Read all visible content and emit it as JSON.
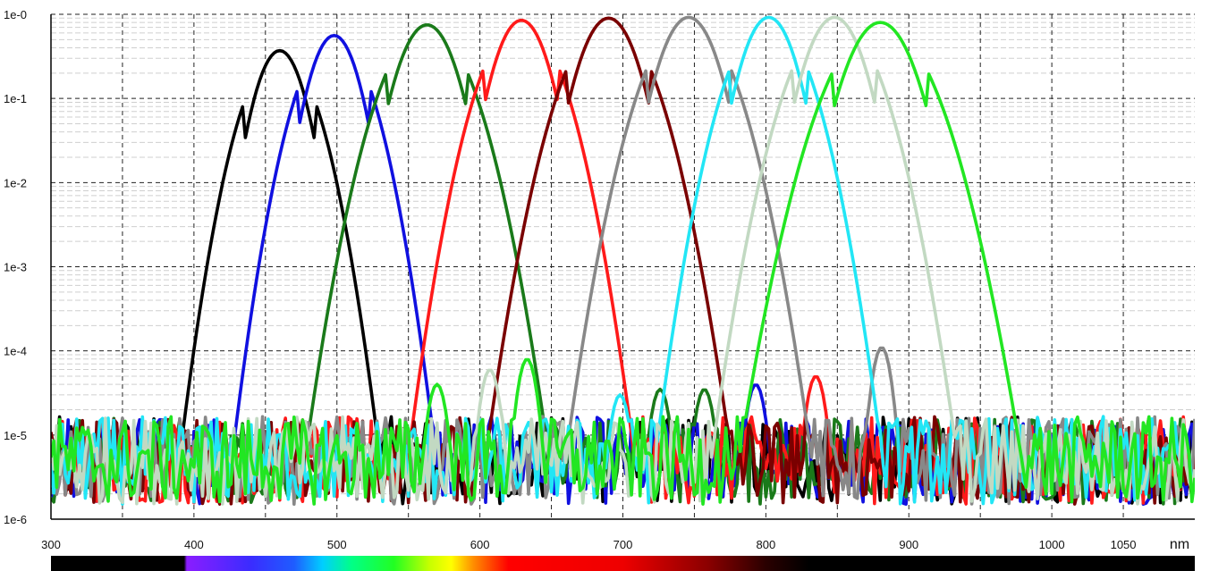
{
  "chart_data": {
    "type": "line",
    "title": "",
    "xlabel": "",
    "ylabel": "",
    "x_unit": "nm",
    "x_scale": "linear",
    "y_scale": "log",
    "xlim": [
      300,
      1100
    ],
    "ylim": [
      1e-06,
      1
    ],
    "x_ticks": [
      300,
      400,
      500,
      600,
      700,
      800,
      900,
      1000,
      1050
    ],
    "x_tick_labels": [
      "300",
      "400",
      "500",
      "600",
      "700",
      "800",
      "900",
      "1000",
      "1050"
    ],
    "y_ticks": [
      1e-06,
      1e-05,
      0.0001,
      0.001,
      0.01,
      0.1,
      1
    ],
    "y_tick_labels": [
      "1e-6",
      "1e-5",
      "1e-4",
      "1e-3",
      "1e-2",
      "1e-1",
      "1e-0"
    ],
    "grid": true,
    "legend": "none",
    "noise_floor": 5e-06,
    "series": [
      {
        "color": "#000000",
        "peak_x": 460,
        "peak_y": 0.37,
        "width_nm": 11
      },
      {
        "color": "#1010e0",
        "peak_x": 498,
        "peak_y": 0.56,
        "width_nm": 11
      },
      {
        "color": "#1a7a1a",
        "peak_x": 563,
        "peak_y": 0.75,
        "width_nm": 13
      },
      {
        "color": "#ff1a1a",
        "peak_x": 629,
        "peak_y": 0.85,
        "width_nm": 12
      },
      {
        "color": "#7a0000",
        "peak_x": 690,
        "peak_y": 0.9,
        "width_nm": 13
      },
      {
        "color": "#888888",
        "peak_x": 746,
        "peak_y": 0.92,
        "width_nm": 13
      },
      {
        "color": "#22e6f5",
        "peak_x": 802,
        "peak_y": 0.92,
        "width_nm": 12
      },
      {
        "color": "#c2d9c2",
        "peak_x": 848,
        "peak_y": 0.92,
        "width_nm": 13
      },
      {
        "color": "#22e622",
        "peak_x": 880,
        "peak_y": 0.8,
        "width_nm": 15
      }
    ],
    "secondary_bumps": [
      {
        "color": "#c2d9c2",
        "x": 607,
        "y": 6e-05
      },
      {
        "color": "#22e622",
        "x": 633,
        "y": 8e-05
      },
      {
        "color": "#22e622",
        "x": 570,
        "y": 4e-05
      },
      {
        "color": "#1a7a1a",
        "x": 726,
        "y": 3.5e-05
      },
      {
        "color": "#1a7a1a",
        "x": 757,
        "y": 3.5e-05
      },
      {
        "color": "#1010e0",
        "x": 793,
        "y": 4e-05
      },
      {
        "color": "#ff1a1a",
        "x": 835,
        "y": 5e-05
      },
      {
        "color": "#888888",
        "x": 881,
        "y": 0.00011
      },
      {
        "color": "#22e6f5",
        "x": 698,
        "y": 3e-05
      }
    ],
    "spectrum_bar": {
      "stops": [
        {
          "x": 300,
          "color": "#000000"
        },
        {
          "x": 393,
          "color": "#000000"
        },
        {
          "x": 395,
          "color": "#8a1dff"
        },
        {
          "x": 440,
          "color": "#3a2cff"
        },
        {
          "x": 470,
          "color": "#1f5cff"
        },
        {
          "x": 490,
          "color": "#00cfff"
        },
        {
          "x": 510,
          "color": "#00ff88"
        },
        {
          "x": 540,
          "color": "#22ff22"
        },
        {
          "x": 565,
          "color": "#c8ff00"
        },
        {
          "x": 580,
          "color": "#ffff00"
        },
        {
          "x": 595,
          "color": "#ff9000"
        },
        {
          "x": 620,
          "color": "#ff0000"
        },
        {
          "x": 700,
          "color": "#ee0000"
        },
        {
          "x": 760,
          "color": "#8a0000"
        },
        {
          "x": 800,
          "color": "#2a0000"
        },
        {
          "x": 830,
          "color": "#000000"
        },
        {
          "x": 1100,
          "color": "#000000"
        }
      ]
    }
  }
}
